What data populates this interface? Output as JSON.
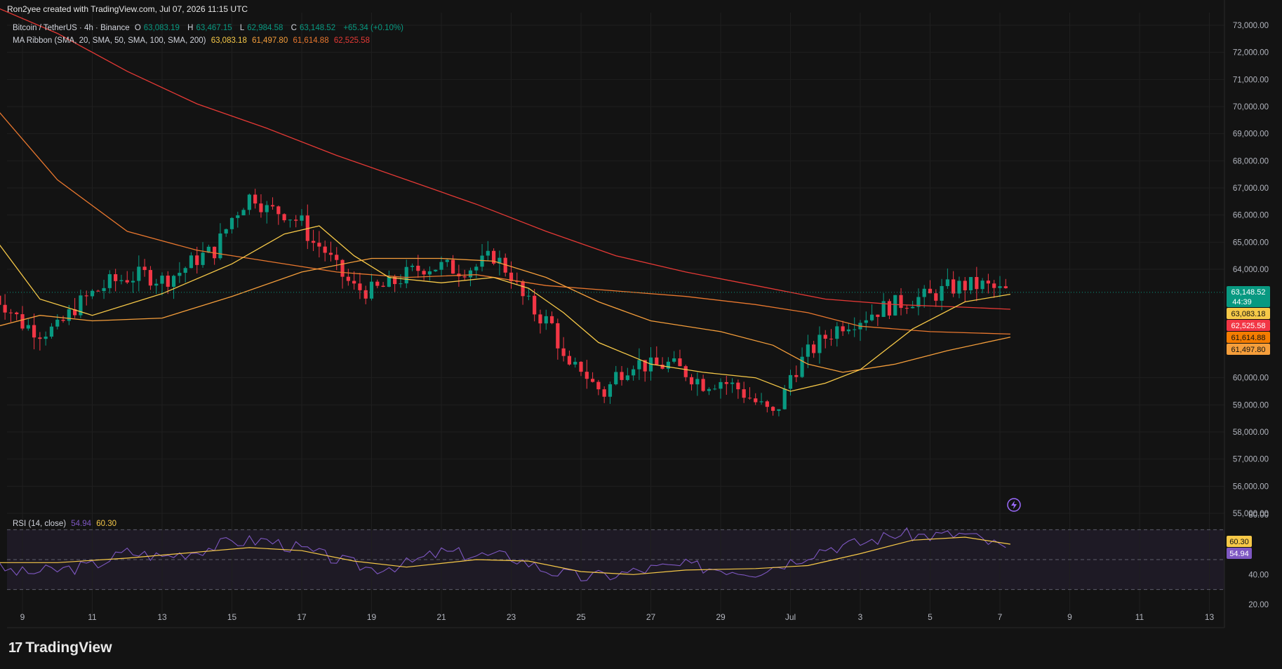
{
  "header": {
    "attribution": "Ron2yee created with TradingView.com, Jul 07, 2026 11:15 UTC"
  },
  "legend": {
    "symbol": "Bitcoin / TetherUS · 4h · Binance",
    "open_label": "O",
    "open": "63,083.19",
    "high_label": "H",
    "high": "63,467.15",
    "low_label": "L",
    "low": "62,984.58",
    "close_label": "C",
    "close": "63,148.52",
    "change": "+65.34 (+0.10%)",
    "ribbon_label": "MA Ribbon (SMA, 20, SMA, 50, SMA, 100, SMA, 200)",
    "ribbon_values": [
      "63,083.18",
      "61,497.80",
      "61,614.88",
      "62,525.58"
    ],
    "rsi_label": "RSI (14, close)",
    "rsi_value": "54.94",
    "rsi_ma_value": "60.30"
  },
  "colors": {
    "background": "#131313",
    "up": "#089981",
    "down": "#f23645",
    "sma20": "#f7c948",
    "sma50": "#f59e3b",
    "sma100": "#e8772e",
    "sma200": "#e53935",
    "rsi": "#7e57c2",
    "rsi_ma": "#f7c948",
    "grid": "#1f1f1f"
  },
  "price_badges": [
    {
      "text": "63,148.52",
      "sub": "44:39",
      "color": "#089981"
    },
    {
      "text": "63,083.18",
      "color": "#f7c948"
    },
    {
      "text": "62,525.58",
      "color": "#f23645"
    },
    {
      "text": "61,614.88",
      "color": "#f57c00"
    },
    {
      "text": "61,497.80",
      "color": "#f59e3b"
    }
  ],
  "rsi_badges": [
    {
      "text": "60.30",
      "color": "#f7c948"
    },
    {
      "text": "54.94",
      "color": "#7e57c2"
    }
  ],
  "brand": "TradingView",
  "chart_data": [
    {
      "type": "candlestick",
      "title": "Bitcoin / TetherUS · 4h · Binance",
      "x_ticks": [
        "9",
        "11",
        "13",
        "15",
        "17",
        "19",
        "21",
        "23",
        "25",
        "27",
        "29",
        "Jul",
        "3",
        "5",
        "7",
        "9",
        "11",
        "13"
      ],
      "y_ticks": [
        "73,000.00",
        "72,000.00",
        "71,000.00",
        "70,000.00",
        "69,000.00",
        "68,000.00",
        "67,000.00",
        "66,000.00",
        "65,000.00",
        "64,000.00",
        "60,000.00",
        "59,000.00",
        "58,000.00",
        "57,000.00",
        "56,000.00",
        "55,000.00"
      ],
      "ylim": [
        55000,
        73000
      ],
      "grid": true,
      "close_path": [
        [
          8.0,
          63200
        ],
        [
          8.5,
          62700
        ],
        [
          9.0,
          62000
        ],
        [
          9.5,
          61700
        ],
        [
          10.0,
          61800
        ],
        [
          10.5,
          62600
        ],
        [
          11.0,
          63100
        ],
        [
          11.5,
          63500
        ],
        [
          12.0,
          63700
        ],
        [
          12.5,
          63800
        ],
        [
          13.0,
          63600
        ],
        [
          13.5,
          63900
        ],
        [
          14.0,
          64400
        ],
        [
          14.5,
          64700
        ],
        [
          14.8,
          65400
        ],
        [
          15.0,
          65900
        ],
        [
          15.3,
          66400
        ],
        [
          15.6,
          66800
        ],
        [
          16.0,
          66200
        ],
        [
          16.5,
          66100
        ],
        [
          17.0,
          65700
        ],
        [
          17.3,
          65000
        ],
        [
          17.6,
          64800
        ],
        [
          18.0,
          64000
        ],
        [
          18.5,
          63300
        ],
        [
          19.0,
          63200
        ],
        [
          19.5,
          63400
        ],
        [
          20.0,
          63800
        ],
        [
          20.5,
          64100
        ],
        [
          21.0,
          64100
        ],
        [
          21.5,
          64000
        ],
        [
          22.0,
          64100
        ],
        [
          22.5,
          64500
        ],
        [
          23.0,
          63800
        ],
        [
          23.3,
          63000
        ],
        [
          23.7,
          62400
        ],
        [
          24.2,
          61900
        ],
        [
          24.6,
          60200
        ],
        [
          25.0,
          60400
        ],
        [
          25.3,
          59800
        ],
        [
          25.7,
          59400
        ],
        [
          26.0,
          60100
        ],
        [
          26.5,
          60600
        ],
        [
          27.0,
          60400
        ],
        [
          27.5,
          60500
        ],
        [
          28.0,
          60200
        ],
        [
          28.5,
          59800
        ],
        [
          29.0,
          59900
        ],
        [
          29.5,
          59600
        ],
        [
          30.0,
          59100
        ],
        [
          30.5,
          58600
        ],
        [
          30.8,
          59300
        ],
        [
          31.0,
          60100
        ],
        [
          31.5,
          60900
        ],
        [
          32.0,
          61500
        ],
        [
          32.5,
          62000
        ],
        [
          33.0,
          62200
        ],
        [
          33.5,
          62500
        ],
        [
          34.0,
          62700
        ],
        [
          34.5,
          62900
        ],
        [
          35.0,
          63000
        ],
        [
          35.5,
          63300
        ],
        [
          36.0,
          63400
        ],
        [
          36.5,
          63400
        ],
        [
          37.0,
          63200
        ],
        [
          37.3,
          63150
        ]
      ],
      "sma20": [
        [
          8.0,
          65500
        ],
        [
          9.5,
          62900
        ],
        [
          11.0,
          62300
        ],
        [
          13.0,
          63100
        ],
        [
          15.0,
          64200
        ],
        [
          16.5,
          65300
        ],
        [
          17.5,
          65600
        ],
        [
          18.5,
          64500
        ],
        [
          19.5,
          63700
        ],
        [
          21.0,
          63500
        ],
        [
          22.5,
          63700
        ],
        [
          23.5,
          63300
        ],
        [
          24.5,
          62400
        ],
        [
          25.5,
          61300
        ],
        [
          27.0,
          60500
        ],
        [
          28.5,
          60200
        ],
        [
          30.0,
          60000
        ],
        [
          31.0,
          59500
        ],
        [
          32.0,
          59800
        ],
        [
          33.0,
          60300
        ],
        [
          34.5,
          61800
        ],
        [
          36.0,
          62800
        ],
        [
          37.3,
          63080
        ]
      ],
      "sma50": [
        [
          8.0,
          61800
        ],
        [
          9.5,
          62300
        ],
        [
          11.0,
          62100
        ],
        [
          13.0,
          62200
        ],
        [
          15.0,
          63000
        ],
        [
          17.0,
          63900
        ],
        [
          19.0,
          64400
        ],
        [
          21.0,
          64400
        ],
        [
          22.5,
          64300
        ],
        [
          24.0,
          63700
        ],
        [
          25.5,
          62800
        ],
        [
          27.0,
          62100
        ],
        [
          29.0,
          61700
        ],
        [
          30.5,
          61200
        ],
        [
          31.5,
          60500
        ],
        [
          32.5,
          60200
        ],
        [
          34.0,
          60500
        ],
        [
          35.5,
          61000
        ],
        [
          37.3,
          61500
        ]
      ],
      "sma100": [
        [
          8.0,
          70300
        ],
        [
          10.0,
          67300
        ],
        [
          12.0,
          65400
        ],
        [
          14.0,
          64700
        ],
        [
          16.0,
          64300
        ],
        [
          18.0,
          63900
        ],
        [
          20.0,
          63700
        ],
        [
          22.0,
          63800
        ],
        [
          24.0,
          63400
        ],
        [
          26.0,
          63200
        ],
        [
          28.0,
          63000
        ],
        [
          30.0,
          62700
        ],
        [
          31.5,
          62400
        ],
        [
          33.0,
          61900
        ],
        [
          35.0,
          61700
        ],
        [
          37.3,
          61610
        ]
      ],
      "sma200": [
        [
          8.0,
          73800
        ],
        [
          10.0,
          72700
        ],
        [
          12.0,
          71300
        ],
        [
          14.0,
          70100
        ],
        [
          16.0,
          69200
        ],
        [
          18.0,
          68200
        ],
        [
          20.0,
          67300
        ],
        [
          22.0,
          66400
        ],
        [
          24.0,
          65400
        ],
        [
          26.0,
          64500
        ],
        [
          28.0,
          63900
        ],
        [
          30.0,
          63400
        ],
        [
          32.0,
          62900
        ],
        [
          34.0,
          62700
        ],
        [
          36.0,
          62600
        ],
        [
          37.3,
          62525
        ]
      ]
    },
    {
      "type": "line",
      "title": "RSI (14, close)",
      "y_ticks": [
        "80.00",
        "40.00",
        "20.00"
      ],
      "ylim": [
        20,
        80
      ],
      "bands": [
        70,
        50,
        30
      ],
      "series": [
        {
          "values": [
            [
              8.0,
              46
            ],
            [
              9.0,
              41
            ],
            [
              10.0,
              43
            ],
            [
              11.0,
              46
            ],
            [
              12.0,
              55
            ],
            [
              13.0,
              52
            ],
            [
              14.0,
              56
            ],
            [
              15.0,
              62
            ],
            [
              16.0,
              63
            ],
            [
              17.0,
              57
            ],
            [
              18.0,
              50
            ],
            [
              19.0,
              44
            ],
            [
              20.0,
              47
            ],
            [
              21.0,
              55
            ],
            [
              22.0,
              53
            ],
            [
              23.0,
              52
            ],
            [
              24.0,
              43
            ],
            [
              25.0,
              38
            ],
            [
              26.0,
              40
            ],
            [
              27.0,
              44
            ],
            [
              28.0,
              46
            ],
            [
              29.0,
              44
            ],
            [
              30.0,
              42
            ],
            [
              31.0,
              49
            ],
            [
              32.0,
              58
            ],
            [
              33.0,
              61
            ],
            [
              34.0,
              67
            ],
            [
              35.0,
              66
            ],
            [
              36.0,
              67
            ],
            [
              37.0,
              59
            ],
            [
              37.3,
              54.94
            ]
          ]
        },
        {
          "values": [
            [
              8.0,
              48
            ],
            [
              10.0,
              48
            ],
            [
              12.0,
              51
            ],
            [
              14.0,
              55
            ],
            [
              15.5,
              58
            ],
            [
              17.0,
              56
            ],
            [
              18.5,
              49
            ],
            [
              20.0,
              45
            ],
            [
              22.0,
              50
            ],
            [
              23.5,
              49
            ],
            [
              25.0,
              42
            ],
            [
              26.5,
              40
            ],
            [
              28.0,
              43
            ],
            [
              30.0,
              44
            ],
            [
              31.5,
              46
            ],
            [
              33.0,
              54
            ],
            [
              34.5,
              63
            ],
            [
              36.0,
              65
            ],
            [
              37.3,
              60.3
            ]
          ]
        }
      ]
    }
  ]
}
